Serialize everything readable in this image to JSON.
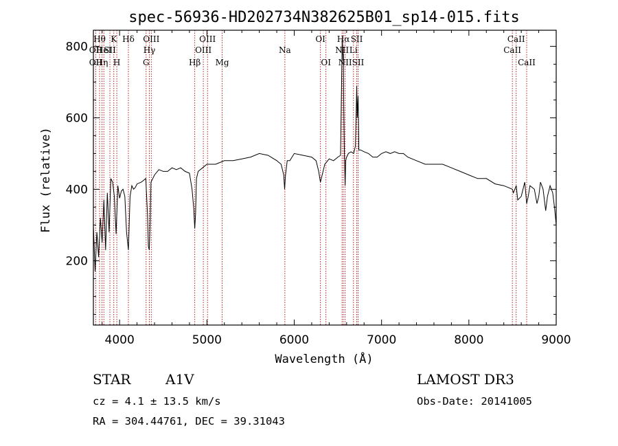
{
  "chart_data": {
    "type": "line",
    "title": "spec-56936-HD202734N382625B01_sp14-015.fits",
    "xlabel": "Wavelength (Å)",
    "ylabel": "Flux (relative)",
    "xlim": [
      3700,
      9000
    ],
    "ylim": [
      20,
      845
    ],
    "xticks": [
      4000,
      5000,
      6000,
      7000,
      8000,
      9000
    ],
    "yticks": [
      200,
      400,
      600,
      800
    ],
    "series": [
      {
        "name": "spectrum",
        "x": [
          3700,
          3720,
          3740,
          3760,
          3780,
          3800,
          3820,
          3840,
          3860,
          3880,
          3900,
          3920,
          3940,
          3960,
          3980,
          4000,
          4020,
          4040,
          4060,
          4080,
          4101,
          4120,
          4140,
          4160,
          4180,
          4200,
          4250,
          4300,
          4320,
          4330,
          4340,
          4350,
          4360,
          4380,
          4400,
          4450,
          4500,
          4550,
          4600,
          4650,
          4700,
          4750,
          4800,
          4830,
          4850,
          4861,
          4870,
          4880,
          4900,
          4950,
          5000,
          5100,
          5200,
          5300,
          5400,
          5500,
          5600,
          5700,
          5800,
          5850,
          5880,
          5890,
          5900,
          5920,
          5950,
          6000,
          6100,
          6200,
          6250,
          6280,
          6300,
          6320,
          6350,
          6400,
          6450,
          6500,
          6530,
          6550,
          6560,
          6563,
          6566,
          6575,
          6583,
          6590,
          6600,
          6620,
          6650,
          6680,
          6700,
          6710,
          6716,
          6722,
          6731,
          6740,
          6760,
          6800,
          6850,
          6900,
          6950,
          7000,
          7050,
          7100,
          7150,
          7200,
          7250,
          7300,
          7400,
          7500,
          7600,
          7700,
          7800,
          7900,
          8000,
          8100,
          8200,
          8300,
          8400,
          8450,
          8498,
          8510,
          8542,
          8560,
          8600,
          8640,
          8662,
          8680,
          8700,
          8750,
          8780,
          8800,
          8820,
          8850,
          8880,
          8900,
          8930,
          8960,
          8980,
          9000
        ],
        "y": [
          300,
          170,
          280,
          210,
          320,
          250,
          370,
          230,
          390,
          280,
          430,
          420,
          380,
          275,
          410,
          375,
          395,
          400,
          380,
          280,
          230,
          380,
          410,
          400,
          405,
          415,
          420,
          430,
          330,
          240,
          230,
          310,
          420,
          430,
          440,
          455,
          450,
          450,
          460,
          455,
          460,
          450,
          445,
          400,
          345,
          290,
          330,
          430,
          450,
          460,
          470,
          470,
          480,
          480,
          485,
          490,
          500,
          495,
          480,
          470,
          440,
          400,
          440,
          480,
          480,
          500,
          495,
          490,
          480,
          450,
          420,
          440,
          470,
          485,
          480,
          490,
          495,
          820,
          760,
          780,
          650,
          500,
          410,
          480,
          490,
          500,
          505,
          500,
          520,
          620,
          690,
          600,
          660,
          510,
          510,
          505,
          500,
          490,
          490,
          500,
          505,
          500,
          505,
          500,
          500,
          490,
          480,
          470,
          470,
          470,
          460,
          450,
          440,
          430,
          430,
          415,
          410,
          405,
          400,
          390,
          410,
          370,
          380,
          420,
          360,
          380,
          410,
          400,
          360,
          380,
          420,
          400,
          340,
          380,
          410,
          390,
          350,
          300
        ]
      }
    ],
    "grid": false,
    "reference_lines": [
      {
        "wavelength": 3727,
        "label": "OII",
        "row": 2
      },
      {
        "wavelength": 3727,
        "label": "OII",
        "row": 3
      },
      {
        "wavelength": 3771,
        "label": "Hθ",
        "row": 1
      },
      {
        "wavelength": 3798,
        "label": "Hη",
        "row": 3
      },
      {
        "wavelength": 3820,
        "label": "HeI",
        "row": 2
      },
      {
        "wavelength": 3889,
        "label": "SII",
        "row": 2
      },
      {
        "wavelength": 3934,
        "label": "K",
        "row": 1
      },
      {
        "wavelength": 3968,
        "label": "H",
        "row": 3
      },
      {
        "wavelength": 4101,
        "label": "Hδ",
        "row": 1
      },
      {
        "wavelength": 4304,
        "label": "G",
        "row": 3
      },
      {
        "wavelength": 4341,
        "label": "Hγ",
        "row": 2
      },
      {
        "wavelength": 4363,
        "label": "OIII",
        "row": 1
      },
      {
        "wavelength": 4861,
        "label": "Hβ",
        "row": 3
      },
      {
        "wavelength": 4959,
        "label": "OIII",
        "row": 2
      },
      {
        "wavelength": 5007,
        "label": "OIII",
        "row": 1
      },
      {
        "wavelength": 5175,
        "label": "Mg",
        "row": 3
      },
      {
        "wavelength": 5893,
        "label": "Na",
        "row": 2
      },
      {
        "wavelength": 6300,
        "label": "OI",
        "row": 1
      },
      {
        "wavelength": 6363,
        "label": "OI",
        "row": 3
      },
      {
        "wavelength": 6548,
        "label": "NII",
        "row": 2
      },
      {
        "wavelength": 6563,
        "label": "Hα",
        "row": 1
      },
      {
        "wavelength": 6583,
        "label": "NII",
        "row": 3
      },
      {
        "wavelength": 6678,
        "label": "Li",
        "row": 2
      },
      {
        "wavelength": 6716,
        "label": "SII",
        "row": 1
      },
      {
        "wavelength": 6731,
        "label": "SII",
        "row": 3
      },
      {
        "wavelength": 8498,
        "label": "CaII",
        "row": 2
      },
      {
        "wavelength": 8542,
        "label": "CaII",
        "row": 1
      },
      {
        "wavelength": 8662,
        "label": "CaII",
        "row": 3
      }
    ],
    "colors": {
      "spectrum": "#000000",
      "reference": "#b00000",
      "axes": "#000000"
    }
  },
  "info": {
    "class_label": "STAR",
    "subclass": "A1V",
    "survey": "LAMOST DR3",
    "cz": "cz = 4.1 ± 13.5 km/s",
    "obs_date": "Obs-Date: 20141005",
    "coords": "RA = 304.44761, DEC =  39.31043"
  }
}
